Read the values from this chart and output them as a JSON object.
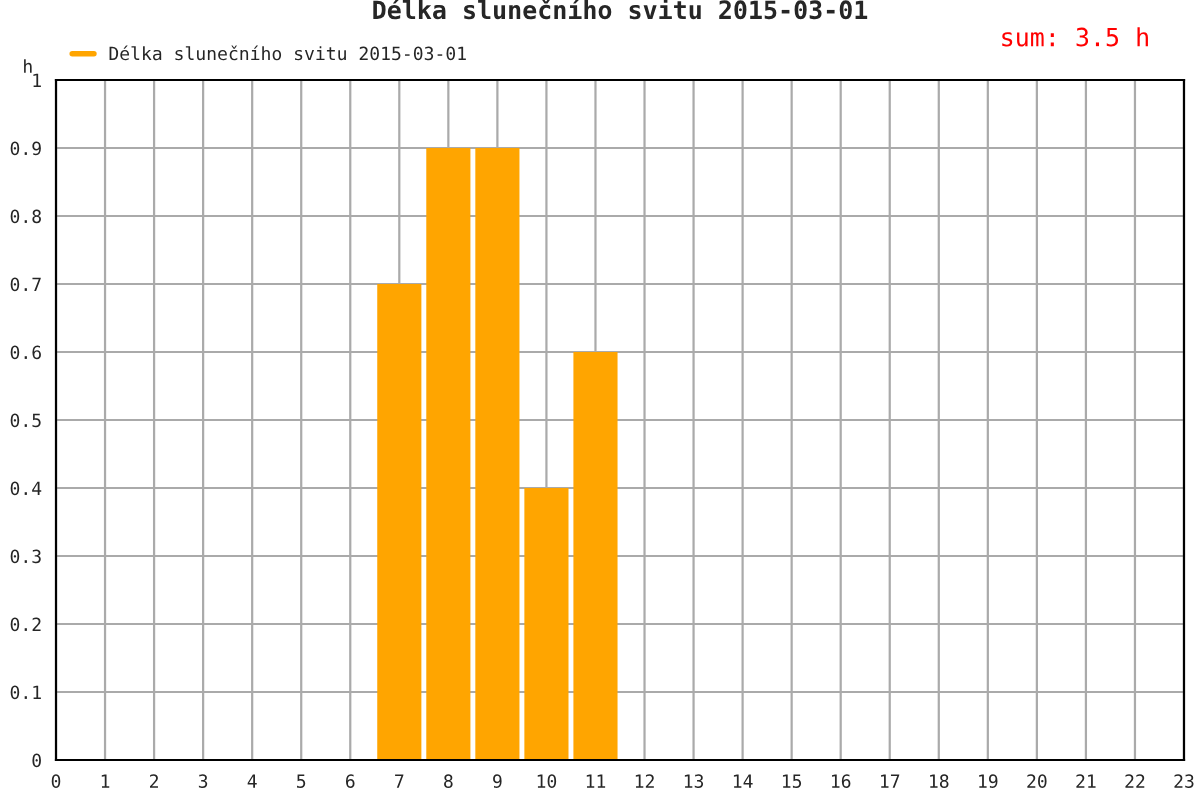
{
  "chart_data": {
    "type": "bar",
    "title": "Délka slunečního svitu 2015-03-01",
    "ylabel": "h",
    "annotations": [
      "sum: 3.5 h"
    ],
    "x": [
      7,
      8,
      9,
      10,
      11
    ],
    "series": [
      {
        "name": "Délka slunečního svitu 2015-03-01",
        "color": "#ffa500",
        "values": [
          0.7,
          0.9,
          0.9,
          0.4,
          0.6
        ]
      }
    ],
    "xlim": [
      0,
      23
    ],
    "xticks": [
      0,
      1,
      2,
      3,
      4,
      5,
      6,
      7,
      8,
      9,
      10,
      11,
      12,
      13,
      14,
      15,
      16,
      17,
      18,
      19,
      20,
      21,
      22,
      23
    ],
    "ylim": [
      0,
      1
    ],
    "yticks": [
      0,
      0.1,
      0.2,
      0.3,
      0.4,
      0.5,
      0.6,
      0.7,
      0.8,
      0.9,
      1
    ],
    "grid": true,
    "legend": "top left"
  }
}
